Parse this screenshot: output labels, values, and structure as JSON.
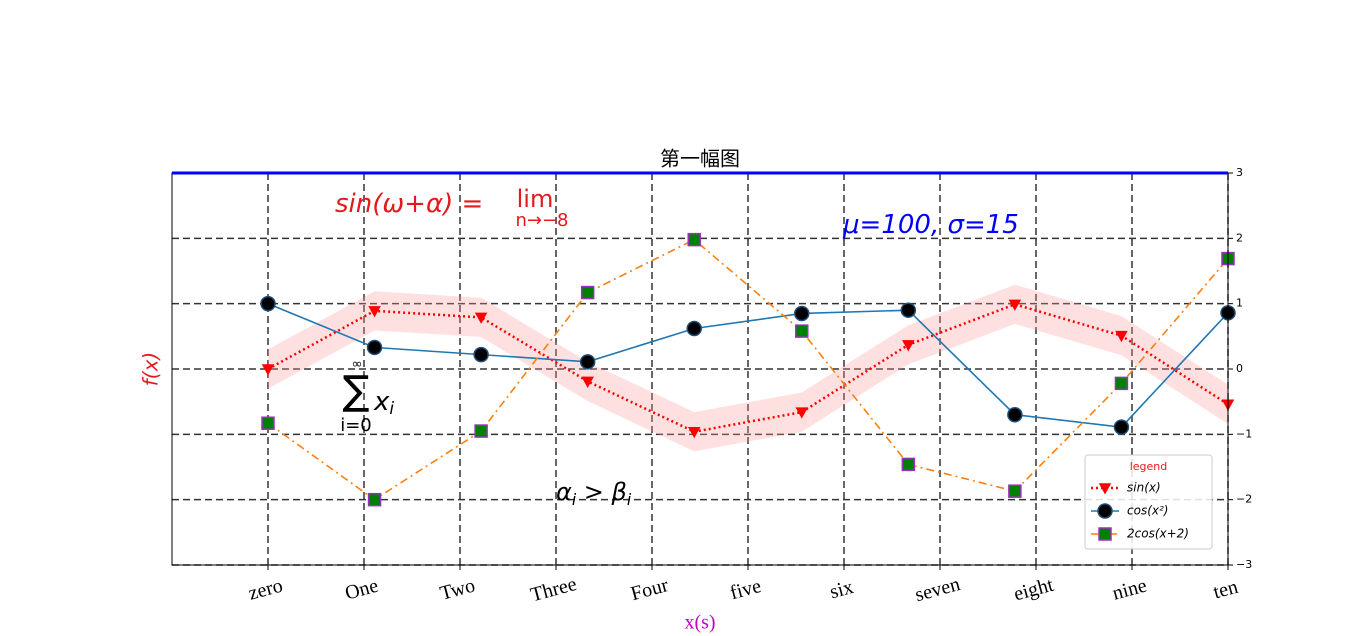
{
  "chart_data": {
    "type": "line",
    "title": "第一幅图",
    "xlabel": "x(s)",
    "ylabel": "f(x)",
    "x": [
      0,
      1.11,
      2.22,
      3.33,
      4.44,
      5.56,
      6.67,
      7.78,
      8.89,
      10
    ],
    "xlim": [
      -1,
      10
    ],
    "xticks": [
      {
        "value": 0,
        "label": "zero"
      },
      {
        "value": 1,
        "label": "One"
      },
      {
        "value": 2,
        "label": "Two"
      },
      {
        "value": 3,
        "label": "Three"
      },
      {
        "value": 4,
        "label": "Four"
      },
      {
        "value": 5,
        "label": "five"
      },
      {
        "value": 6,
        "label": "six"
      },
      {
        "value": 7,
        "label": "seven"
      },
      {
        "value": 8,
        "label": "eight"
      },
      {
        "value": 9,
        "label": "nine"
      },
      {
        "value": 10,
        "label": "ten"
      }
    ],
    "ylim": [
      -3,
      3
    ],
    "yticks": [
      {
        "value": -3,
        "label": "−3"
      },
      {
        "value": -2,
        "label": "−2"
      },
      {
        "value": -1,
        "label": "−1"
      },
      0,
      1,
      2,
      3
    ],
    "grid": true,
    "legend": {
      "title": "legend",
      "title_color": "#e31a1c",
      "position": "lower right"
    },
    "series": [
      {
        "name": "sin(x)",
        "color": "#ff0000",
        "linestyle": "dotted",
        "marker": "triangle-down",
        "marker_color": "#ff0000",
        "marker_edge": "#ff0000",
        "values": [
          0,
          0.89,
          0.79,
          -0.19,
          -0.96,
          -0.66,
          0.37,
          0.99,
          0.51,
          -0.54
        ],
        "band": {
          "color": "#ff9999",
          "upper": [
            0.3,
            1.19,
            1.09,
            0.11,
            -0.66,
            -0.36,
            0.67,
            1.29,
            0.81,
            -0.24
          ],
          "lower": [
            -0.3,
            0.59,
            0.49,
            -0.49,
            -1.26,
            -0.96,
            0.07,
            0.69,
            0.21,
            -0.84
          ]
        }
      },
      {
        "name": "cos(x²)",
        "color": "#1f77b4",
        "linestyle": "solid",
        "marker": "circle",
        "marker_color": "#000000",
        "marker_edge": "#1f4e79",
        "values": [
          1,
          0.33,
          0.22,
          0.11,
          0.62,
          0.85,
          0.9,
          -0.7,
          -0.89,
          0.86
        ]
      },
      {
        "name": "2cos(x+2)",
        "color": "#ff7f0e",
        "linestyle": "dashdot",
        "marker": "square",
        "marker_color": "#008000",
        "marker_edge": "#9b30c0",
        "values": [
          -0.83,
          -2.0,
          -0.95,
          1.17,
          1.98,
          0.58,
          -1.46,
          -1.87,
          -0.22,
          1.69
        ]
      }
    ],
    "annotations": [
      {
        "color": "#e31a1c",
        "parts": [
          {
            "text": "sin(ω+α) = "
          }
        ]
      },
      {
        "color": "#e31a1c",
        "parts": [
          {
            "text": "lim"
          }
        ]
      },
      {
        "color": "#e31a1c",
        "parts": [
          {
            "text": "n→−8"
          }
        ]
      },
      {
        "color": "#0000ff",
        "parts": [
          {
            "text": "μ=100, σ=15"
          }
        ]
      },
      {
        "color": "#000000",
        "parts": [
          {
            "text": "∑"
          }
        ]
      },
      {
        "color": "#000000",
        "parts": [
          {
            "text": "∞"
          }
        ]
      },
      {
        "color": "#000000",
        "parts": [
          {
            "text": "i=0"
          }
        ]
      },
      {
        "color": "#000000",
        "parts": [
          {
            "text": "x"
          },
          {
            "text": "i",
            "sub": true
          }
        ]
      },
      {
        "color": "#000000",
        "parts": [
          {
            "text": "α"
          },
          {
            "text": "i",
            "sub": true
          },
          {
            "text": " > β"
          },
          {
            "text": "i",
            "sub": true
          }
        ]
      }
    ]
  }
}
